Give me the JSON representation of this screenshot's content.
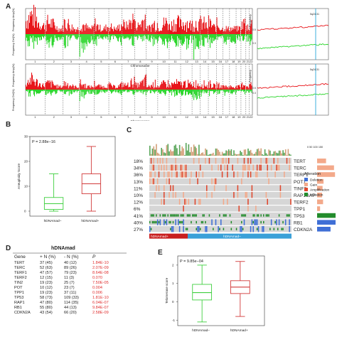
{
  "panels": {
    "a": "A",
    "b": "B",
    "c": "C",
    "d": "D",
    "e": "E"
  },
  "panel_a": {
    "ylabel_top_gain": "Frequency Amp(%)",
    "ylabel_top_loss": "Frequency Del(%)",
    "xlabel": "Chromosome",
    "chromosomes": [
      "1",
      "2",
      "3",
      "4",
      "5",
      "6",
      "7",
      "8",
      "9",
      "10",
      "11",
      "12",
      "13",
      "14",
      "15",
      "16",
      "17",
      "18",
      "19",
      "20",
      "21",
      "22"
    ],
    "zoom_label": "5q24.31",
    "zoom_ylabel": "Frequency",
    "zoom_tick_1": "0.5",
    "zoom_tick_0": "0.3",
    "colors": {
      "gain": "#e8151a",
      "loss": "#2bd52b",
      "marker": "#2aa7d8"
    }
  },
  "panel_b": {
    "pvalue": "P = 2.88e−16",
    "ylabel": "Aneuploidy Score",
    "groups": [
      "hDNAmad−",
      "hDNAmad+"
    ],
    "colors": [
      "#3fcf3f",
      "#d23a3a"
    ],
    "chart_data": {
      "type": "box",
      "categories": [
        "hDNAmad−",
        "hDNAmad+"
      ],
      "series": [
        {
          "q1": 0.7,
          "median": 3,
          "q3": 5.5,
          "min": 0,
          "max": 15
        },
        {
          "q1": 7,
          "median": 11,
          "q3": 15,
          "min": 0,
          "max": 26
        }
      ],
      "ylim": [
        -2,
        30
      ]
    }
  },
  "panel_c": {
    "genes": [
      {
        "pct": "18%",
        "name": "TERT"
      },
      {
        "pct": "34%",
        "name": "TERC"
      },
      {
        "pct": "36%",
        "name": "TERF1"
      },
      {
        "pct": "13%",
        "name": "POT1"
      },
      {
        "pct": "11%",
        "name": "TINF2"
      },
      {
        "pct": "10%",
        "name": "RAP1GAP"
      },
      {
        "pct": "12%",
        "name": "TERF2"
      },
      {
        "pct": "6%",
        "name": "TPP1"
      },
      {
        "pct": "41%",
        "name": "TP53"
      },
      {
        "pct": "40%",
        "name": "RB1"
      },
      {
        "pct": "27%",
        "name": "CDKN2A"
      }
    ],
    "bar_scale": "0 50 100 150",
    "legend_title": "Alteration",
    "legend": [
      {
        "label": "Deletion",
        "color": "#3f6fd6"
      },
      {
        "label": "Gain",
        "color": "#f3a98a"
      },
      {
        "label": "Amplification",
        "color": "#e0462c"
      },
      {
        "label": "Mutation",
        "color": "#238c2c"
      }
    ],
    "group_plus": "hDNAmad+",
    "group_minus": "hDNAmad−"
  },
  "panel_d": {
    "title": "hDNAmad",
    "header": [
      "Gene",
      "+ N (%)",
      "- N (%)",
      "P"
    ],
    "rows": [
      [
        "TERT",
        "37 (45)",
        "40 (12)",
        "1.84E-10"
      ],
      [
        "TERC",
        "52 (63)",
        "89 (26)",
        "2.07E-09"
      ],
      [
        "TERF1",
        "47 (57)",
        "79 (23)",
        "8.64E-08"
      ],
      [
        "TERF2",
        "12 (15)",
        "11 (3)",
        "0.070"
      ],
      [
        "TIN2",
        "19 (23)",
        "25 (7)",
        "7.50E-05"
      ],
      [
        "POT",
        "10 (12)",
        "23 (7)",
        "0.004"
      ],
      [
        "TPP1",
        "19 (23)",
        "37 (11)",
        "0.006"
      ],
      [
        "TP53",
        "58 (73)",
        "109 (33)",
        "1.81E-10"
      ],
      [
        "RAP1",
        "47 (80)",
        "114 (35)",
        "6.04E-07"
      ],
      [
        "RB1",
        "55 (80)",
        "44 (13)",
        "9.84E-07"
      ],
      [
        "CDKN2A",
        "43 (54)",
        "66 (20)",
        "2.58E-09"
      ]
    ]
  },
  "panel_e": {
    "pvalue": "P = 9.85e−04",
    "ylabel": "Telomerase score",
    "groups": [
      "hDNAmad−",
      "hDNAmad+"
    ],
    "chart_data": {
      "type": "box",
      "categories": [
        "hDNAmad−",
        "hDNAmad+"
      ],
      "series": [
        {
          "q1": 0.1,
          "median": 0.5,
          "q3": 0.95,
          "min": -1.1,
          "max": 2.0
        },
        {
          "q1": 0.45,
          "median": 0.8,
          "q3": 1.15,
          "min": -0.8,
          "max": 2.2
        }
      ],
      "ylim": [
        -1.3,
        2.5
      ]
    }
  }
}
